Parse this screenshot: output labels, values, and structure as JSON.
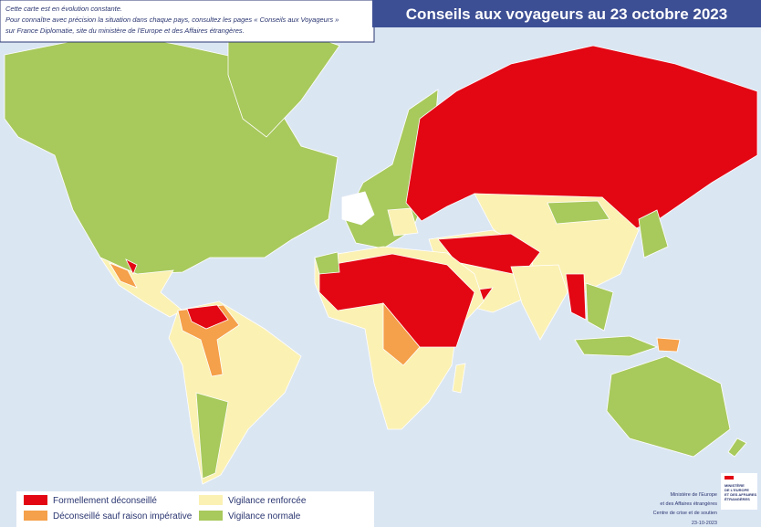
{
  "header": {
    "title": "Conseils aux voyageurs au 23 octobre 2023"
  },
  "note": [
    "Cette carte est en évolution constante.",
    "Pour connaître avec précision la situation dans chaque pays, consultez les pages « Conseils aux Voyageurs »",
    "sur France Diplomatie, site du ministère de l'Europe et des Affaires étrangères."
  ],
  "legend": [
    {
      "label": "Formellement déconseillé",
      "color": "#e30613"
    },
    {
      "label": "Déconseillé sauf raison impérative",
      "color": "#f5a04a"
    },
    {
      "label": "Vigilance renforcée",
      "color": "#fbf1b3"
    },
    {
      "label": "Vigilance normale",
      "color": "#a8c95c"
    }
  ],
  "logo": [
    "MINISTÈRE",
    "DE L'EUROPE",
    "ET DES AFFAIRES",
    "ÉTRANGÈRES"
  ],
  "footer": [
    "Ministère de l'Europe",
    "et des Affaires étrangères",
    "Centre de crise et de soutien",
    "23-10-2023"
  ]
}
